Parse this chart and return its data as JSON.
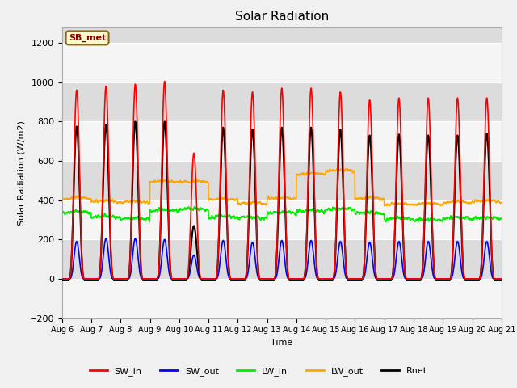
{
  "title": "Solar Radiation",
  "ylabel": "Solar Radiation (W/m2)",
  "xlabel": "Time",
  "ylim": [
    -200,
    1280
  ],
  "yticks": [
    -200,
    0,
    200,
    400,
    600,
    800,
    1000,
    1200
  ],
  "start_day": 6,
  "end_day": 21,
  "n_days": 15,
  "points_per_day": 144,
  "SW_in_peaks": [
    960,
    980,
    990,
    1005,
    640,
    960,
    950,
    970,
    970,
    950,
    910,
    920,
    920,
    920,
    920
  ],
  "SW_out_peaks": [
    190,
    205,
    205,
    200,
    120,
    195,
    185,
    195,
    195,
    190,
    185,
    190,
    190,
    190,
    190
  ],
  "LW_in_base": [
    335,
    310,
    300,
    345,
    350,
    310,
    305,
    330,
    340,
    350,
    330,
    300,
    295,
    305,
    305
  ],
  "LW_out_base": [
    405,
    390,
    385,
    490,
    490,
    400,
    380,
    405,
    530,
    545,
    405,
    375,
    375,
    385,
    390
  ],
  "Rnet_peaks": [
    775,
    785,
    800,
    800,
    270,
    770,
    760,
    770,
    770,
    760,
    730,
    735,
    730,
    730,
    740
  ],
  "colors": {
    "SW_in": "#ff0000",
    "SW_out": "#0000ff",
    "LW_in": "#00ee00",
    "LW_out": "#ffa500",
    "Rnet": "#000000"
  },
  "plot_bg_light": "#f5f5f5",
  "plot_bg_dark": "#dcdcdc",
  "annotation_text": "SB_met",
  "annotation_color": "#8b0000",
  "annotation_bg": "#fffacd",
  "annotation_edge": "#8b6914",
  "grid_color": "#ffffff",
  "linewidth": 1.2,
  "fig_bg": "#f0f0f0"
}
